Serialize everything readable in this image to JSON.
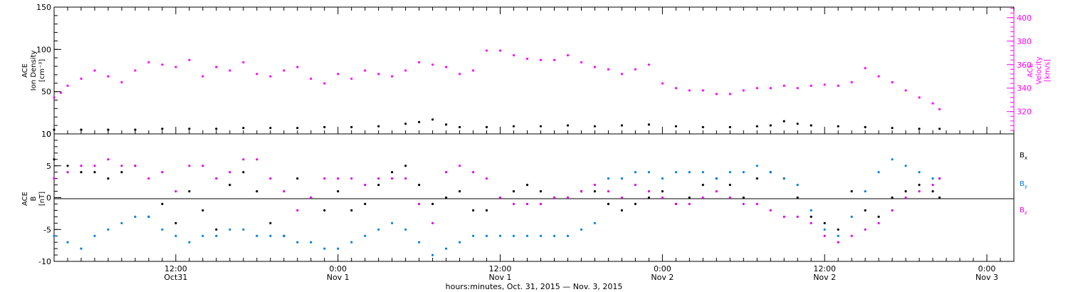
{
  "chart_data": [
    {
      "type": "scatter",
      "panel": "top",
      "ylabel_lines": [
        "ACE",
        "Ion Density",
        "[cm⁻³]"
      ],
      "ylim": [
        0,
        150
      ],
      "yticks": [
        "0",
        "50",
        "100",
        "150"
      ],
      "y2label_lines": [
        "ACE",
        "Velocity",
        "[km/s]"
      ],
      "y2lim": [
        301,
        409
      ],
      "y2ticks": [
        "320",
        "340",
        "360",
        "380",
        "400"
      ],
      "series": [
        {
          "axis": "left",
          "color": "#000000",
          "x": [
            0,
            2,
            4,
            6,
            8,
            10,
            12,
            14,
            16,
            18,
            20,
            22,
            24,
            26,
            27,
            28,
            29,
            30,
            32,
            34,
            36,
            38,
            40,
            42,
            44,
            46,
            48,
            50,
            52,
            53,
            54,
            55,
            56,
            58,
            60,
            62,
            64,
            65.5
          ],
          "y": [
            5,
            5,
            5,
            5,
            6,
            6,
            6,
            7,
            7,
            7,
            8,
            8,
            9,
            12,
            14,
            17,
            11,
            8,
            8,
            9,
            9,
            10,
            9,
            10,
            11,
            9,
            8,
            8,
            9,
            10,
            15,
            12,
            10,
            9,
            8,
            7,
            6,
            6
          ]
        },
        {
          "axis": "right",
          "color": "#ff00ff",
          "x": [
            0,
            0.5,
            1,
            2,
            3,
            4,
            5,
            6,
            7,
            8,
            9,
            10,
            11,
            12,
            13,
            14,
            15,
            16,
            17,
            18,
            19,
            20,
            21,
            22,
            23,
            24,
            25,
            26,
            27,
            28,
            29,
            30,
            31,
            32,
            33,
            34,
            35,
            36,
            37,
            38,
            39,
            40,
            41,
            42,
            43,
            44,
            45,
            46,
            47,
            48,
            49,
            50,
            51,
            52,
            53,
            54,
            55,
            56,
            57,
            58,
            59,
            60,
            61,
            62,
            63,
            64,
            65,
            65.5
          ],
          "y": [
            332,
            336,
            342,
            348,
            355,
            350,
            345,
            355,
            362,
            360,
            358,
            364,
            350,
            358,
            355,
            362,
            352,
            350,
            355,
            358,
            348,
            344,
            352,
            348,
            355,
            352,
            350,
            355,
            362,
            360,
            358,
            352,
            355,
            372,
            372,
            368,
            365,
            364,
            364,
            368,
            362,
            358,
            356,
            352,
            356,
            360,
            344,
            340,
            338,
            338,
            335,
            335,
            338,
            340,
            340,
            342,
            340,
            342,
            343,
            342,
            345,
            357,
            350,
            345,
            338,
            332,
            327,
            322
          ]
        }
      ]
    },
    {
      "type": "scatter",
      "panel": "bottom",
      "ylabel_lines": [
        "ACE",
        "B",
        "[nT]"
      ],
      "ylim": [
        -10,
        10
      ],
      "yticks": [
        "-10",
        "-5",
        "0",
        "5",
        "10"
      ],
      "legend_position": "right",
      "xlabel": "hours:minutes, Oct. 31, 2015 — Nov. 3, 2015",
      "xlim": [
        0,
        71
      ],
      "xticks": [
        {
          "at": 9,
          "top": "12:00",
          "bottom": "Oct31"
        },
        {
          "at": 21,
          "top": "0:00",
          "bottom": "Nov 1"
        },
        {
          "at": 33,
          "top": "12:00",
          "bottom": "Nov 1"
        },
        {
          "at": 45,
          "top": "0:00",
          "bottom": "Nov 2"
        },
        {
          "at": 57,
          "top": "12:00",
          "bottom": "Nov 2"
        },
        {
          "at": 69,
          "top": "0:00",
          "bottom": "Nov 3"
        }
      ],
      "series": [
        {
          "name": "Bx",
          "color": "#000000",
          "x": [
            0,
            1,
            2,
            3,
            4,
            5,
            6,
            7,
            8,
            9,
            10,
            11,
            12,
            13,
            14,
            15,
            16,
            17,
            18,
            19,
            20,
            21,
            22,
            23,
            24,
            25,
            26,
            27,
            28,
            29,
            30,
            31,
            32,
            33,
            34,
            35,
            36,
            37,
            38,
            39,
            40,
            41,
            42,
            43,
            44,
            45,
            46,
            47,
            48,
            49,
            50,
            51,
            52,
            53,
            54,
            55,
            56,
            57,
            58,
            59,
            60,
            61,
            62,
            63,
            64,
            65,
            65.5
          ],
          "y": [
            6,
            5,
            4,
            4,
            3,
            4,
            5,
            -3,
            -1,
            -4,
            1,
            -2,
            -5,
            2,
            4,
            1,
            -4,
            -6,
            3,
            0,
            -2,
            1,
            -2,
            -1,
            2,
            4,
            5,
            2,
            -1,
            0,
            1,
            -2,
            -2,
            0,
            1,
            2,
            1,
            0,
            0,
            1,
            1,
            -1,
            -2,
            -1,
            0,
            1,
            -1,
            0,
            2,
            3,
            2,
            0,
            3,
            4,
            3,
            0,
            -3,
            -4,
            -5,
            1,
            -2,
            -3,
            0,
            1,
            2,
            1,
            0
          ]
        },
        {
          "name": "By",
          "color": "#0080e0",
          "x": [
            0,
            1,
            2,
            3,
            4,
            5,
            6,
            7,
            8,
            9,
            10,
            11,
            12,
            13,
            14,
            15,
            16,
            17,
            18,
            19,
            20,
            21,
            22,
            23,
            24,
            25,
            26,
            27,
            28,
            29,
            30,
            31,
            32,
            33,
            34,
            35,
            36,
            37,
            38,
            39,
            40,
            41,
            42,
            43,
            44,
            45,
            46,
            47,
            48,
            49,
            50,
            51,
            52,
            53,
            54,
            55,
            56,
            57,
            58,
            59,
            60,
            61,
            62,
            63,
            64,
            65,
            65.5
          ],
          "y": [
            -6,
            -7,
            -8,
            -6,
            -5,
            -4,
            -3,
            -3,
            -5,
            -6,
            -7,
            -6,
            -6,
            -5,
            -5,
            -6,
            -6,
            -6,
            -7,
            -7,
            -8,
            -8,
            -7,
            -6,
            -5,
            -4,
            -5,
            -7,
            -9,
            -8,
            -7,
            -6,
            -6,
            -6,
            -6,
            -6,
            -6,
            -6,
            -6,
            -5,
            -4,
            3,
            3,
            4,
            4,
            3,
            4,
            4,
            4,
            3,
            4,
            4,
            5,
            4,
            3,
            2,
            -2,
            -5,
            -6,
            -3,
            1,
            4,
            6,
            5,
            4,
            3,
            3
          ]
        },
        {
          "name": "Bz",
          "color": "#e000e0",
          "x": [
            0,
            1,
            2,
            3,
            4,
            5,
            6,
            7,
            8,
            9,
            10,
            11,
            12,
            13,
            14,
            15,
            16,
            17,
            18,
            19,
            20,
            21,
            22,
            23,
            24,
            25,
            26,
            27,
            28,
            29,
            30,
            31,
            32,
            33,
            34,
            35,
            36,
            37,
            38,
            39,
            40,
            41,
            42,
            43,
            44,
            45,
            46,
            47,
            48,
            49,
            50,
            51,
            52,
            53,
            54,
            55,
            56,
            57,
            58,
            59,
            60,
            61,
            62,
            63,
            64,
            65,
            65.5
          ],
          "y": [
            3,
            4,
            5,
            5,
            6,
            5,
            5,
            3,
            4,
            1,
            5,
            5,
            3,
            4,
            6,
            6,
            3,
            1,
            -2,
            0,
            3,
            3,
            3,
            2,
            3,
            3,
            3,
            -1,
            -4,
            4,
            5,
            4,
            3,
            0,
            -1,
            -1,
            -1,
            0,
            0,
            1,
            2,
            1,
            0,
            2,
            1,
            0,
            -1,
            -1,
            0,
            1,
            0,
            -1,
            -1,
            -2,
            -3,
            -3,
            -4,
            -6,
            -7,
            -6,
            -5,
            -4,
            -2,
            0,
            1,
            2,
            3
          ]
        }
      ]
    }
  ]
}
